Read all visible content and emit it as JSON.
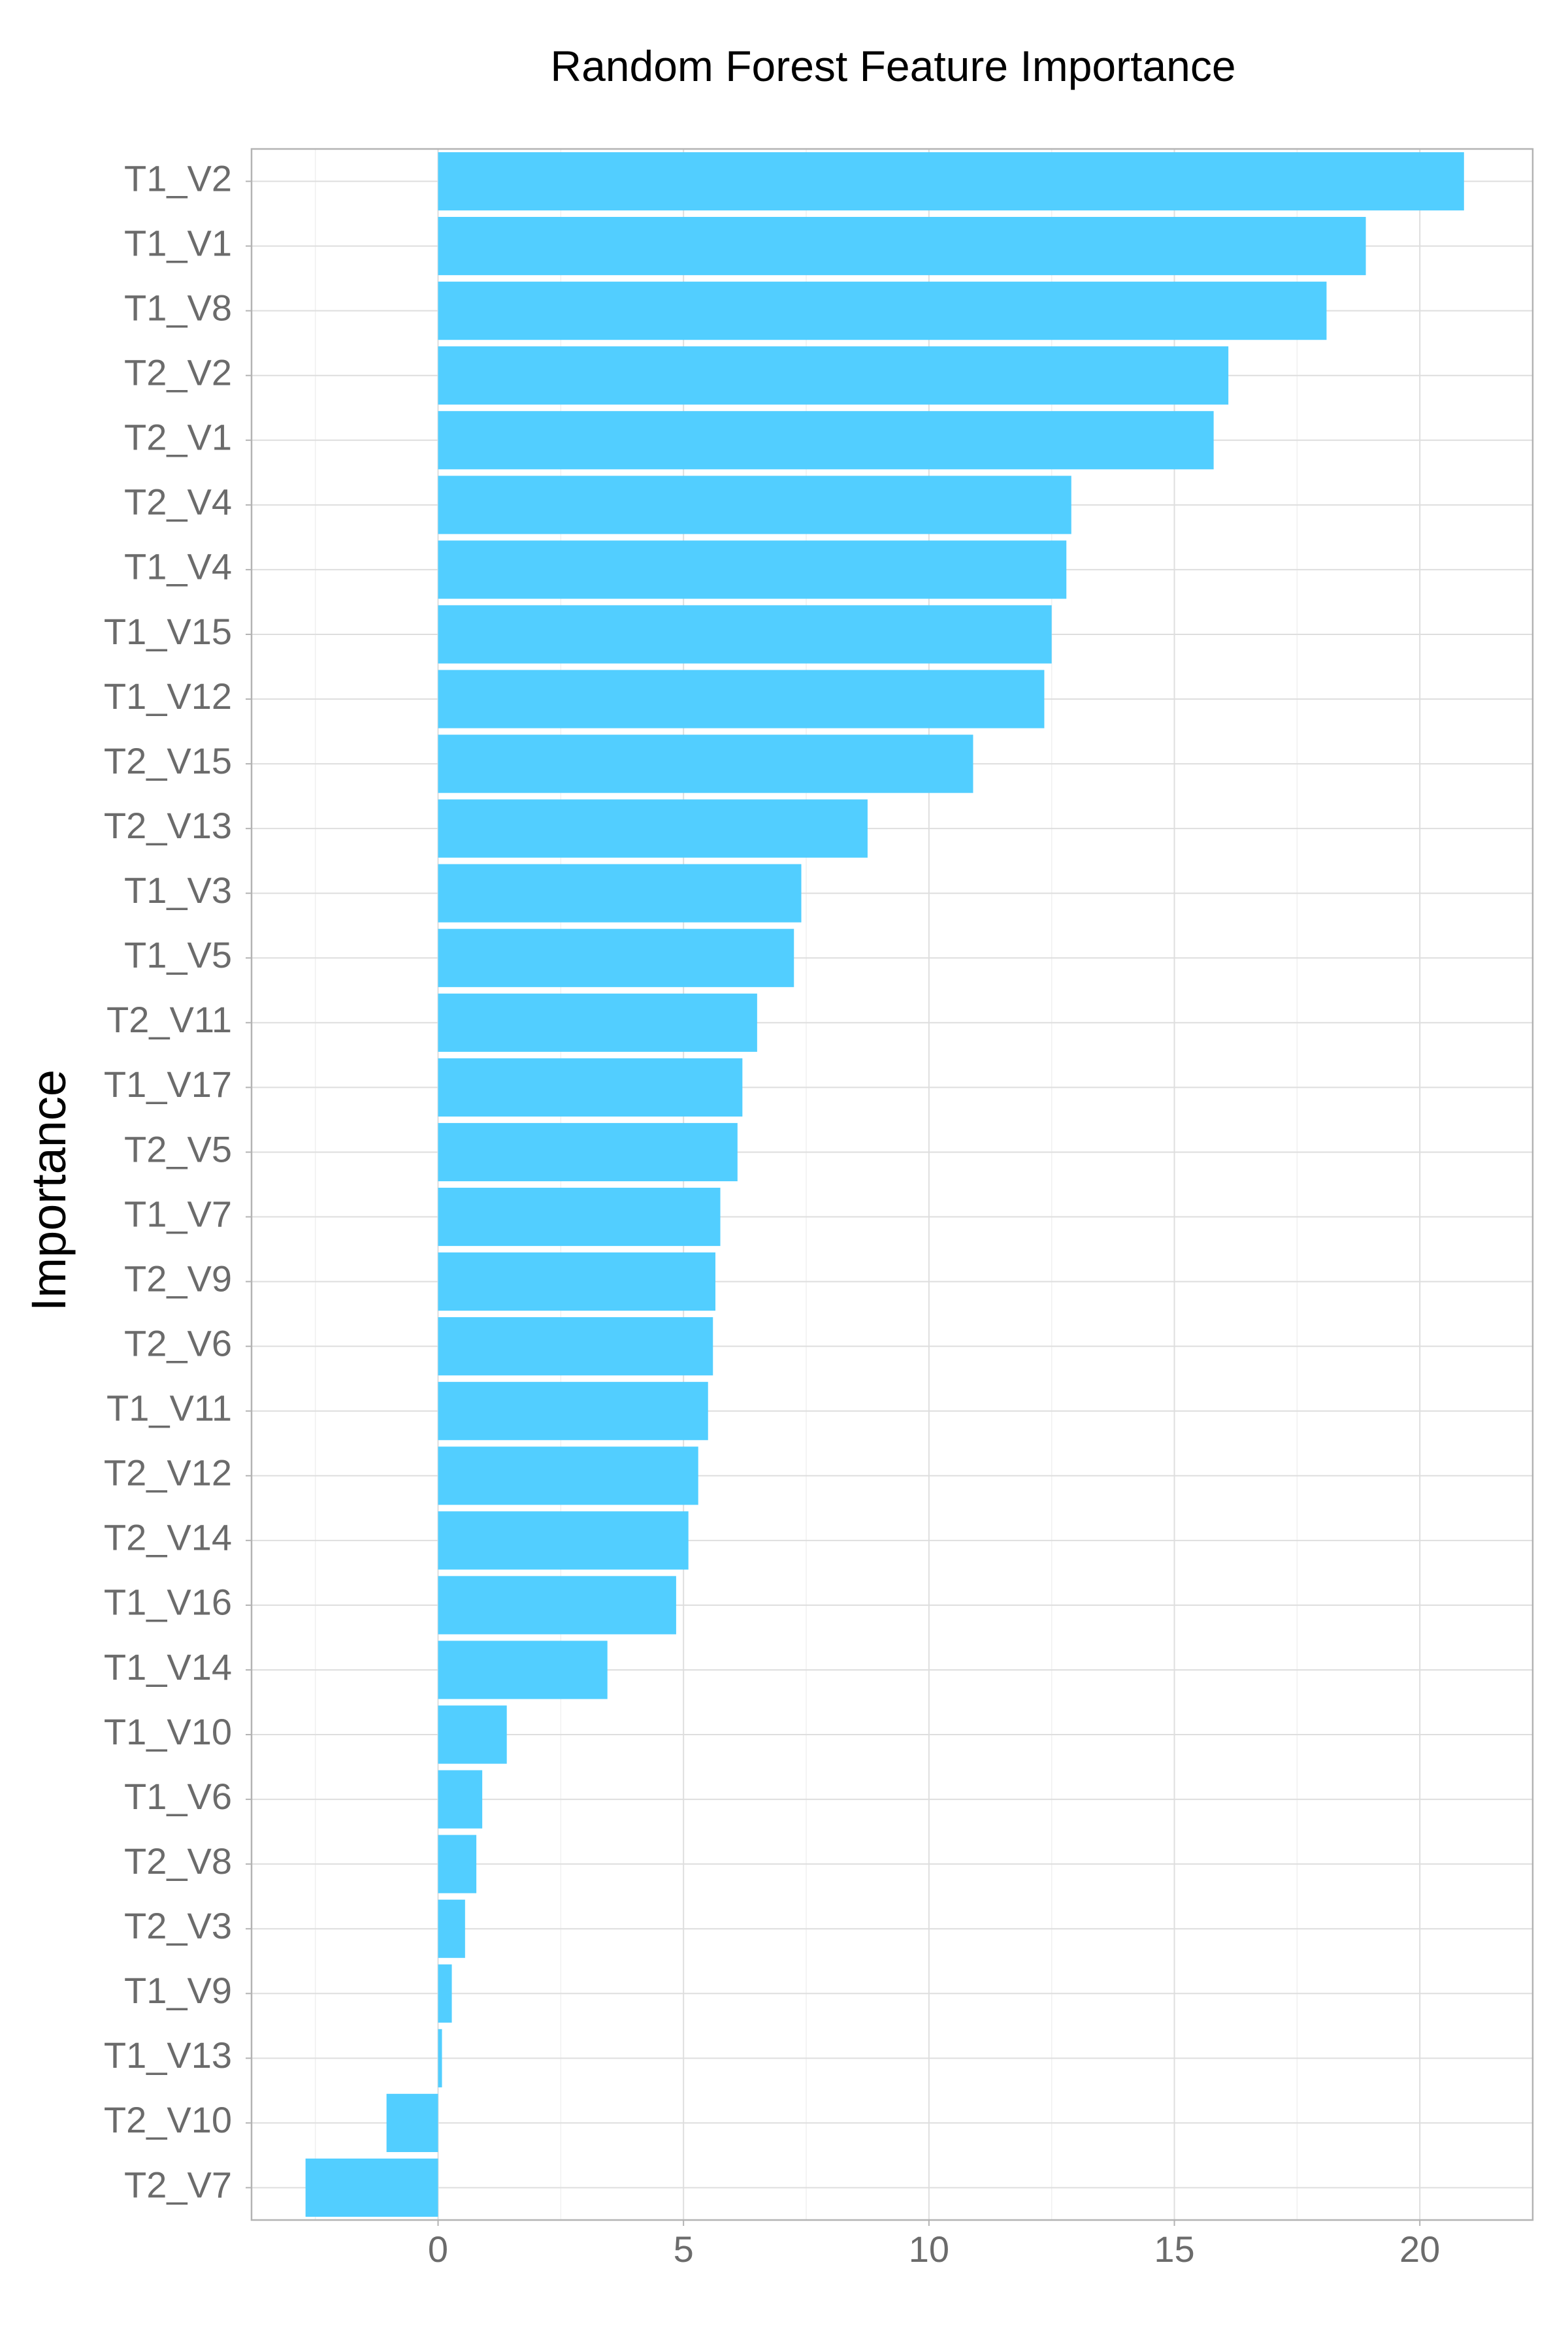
{
  "chart_data": {
    "type": "bar",
    "orientation": "horizontal",
    "title": "Random Forest Feature Importance",
    "xlabel": "",
    "ylabel": "Importance",
    "categories": [
      "T1_V2",
      "T1_V1",
      "T1_V8",
      "T2_V2",
      "T2_V1",
      "T2_V4",
      "T1_V4",
      "T1_V15",
      "T1_V12",
      "T2_V15",
      "T2_V13",
      "T1_V3",
      "T1_V5",
      "T2_V11",
      "T1_V17",
      "T2_V5",
      "T1_V7",
      "T2_V9",
      "T2_V6",
      "T1_V11",
      "T2_V12",
      "T2_V14",
      "T1_V16",
      "T1_V14",
      "T1_V10",
      "T1_V6",
      "T2_V8",
      "T2_V3",
      "T1_V9",
      "T1_V13",
      "T2_V10",
      "T2_V7"
    ],
    "values": [
      20.9,
      18.9,
      18.1,
      16.1,
      15.8,
      12.9,
      12.8,
      12.5,
      12.35,
      10.9,
      8.75,
      7.4,
      7.25,
      6.5,
      6.2,
      6.1,
      5.75,
      5.65,
      5.6,
      5.5,
      5.3,
      5.1,
      4.85,
      3.45,
      1.4,
      0.9,
      0.78,
      0.55,
      0.28,
      0.08,
      -1.05,
      -2.7
    ],
    "xlim": [
      -3.8,
      22.3
    ],
    "xticks": [
      0,
      5,
      10,
      15,
      20
    ],
    "xtick_labels": [
      "0",
      "5",
      "10",
      "15",
      "20"
    ],
    "grid": true,
    "colors": {
      "bar": "#52CEFF",
      "grid": "#DEDEDE",
      "panel_border": "#B3B3B3",
      "tick_text": "#6B6B6B"
    }
  }
}
